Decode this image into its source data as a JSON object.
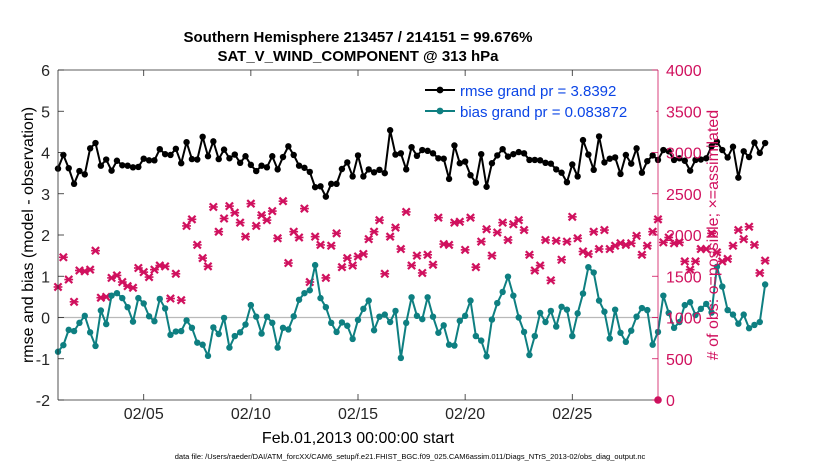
{
  "chart_data": {
    "type": "line",
    "title": "Southern Hemisphere 213457 / 214151 = 99.676%",
    "subtitle": "SAT_V_WIND_COMPONENT @ 313 hPa",
    "xlabel": "Feb.01,2013 00:00:00 start",
    "ylabel": "rmse and bias (model - observation)",
    "y2label": "# of obs: o=possible; ×=assimilated",
    "footer": "data file: /Users/raeder/DAI/ATM_forcXX/CAM6_setup/f.e21.FHIST_BGC.f09_025.CAM6assim.011/Diags_NTrS_2013-02/obs_diag_output.nc",
    "x_ticks": [
      "02/05",
      "02/10",
      "02/15",
      "02/20",
      "02/25"
    ],
    "x_tick_days": [
      5,
      10,
      15,
      20,
      25
    ],
    "xlim_days": [
      1,
      29
    ],
    "ylim": [
      -2,
      6
    ],
    "y_ticks": [
      "-2",
      "-1",
      "0",
      "1",
      "2",
      "3",
      "4",
      "5",
      "6"
    ],
    "y2lim": [
      0,
      4000
    ],
    "y2_ticks": [
      "0",
      "500",
      "1000",
      "1500",
      "2000",
      "2500",
      "3000",
      "3500",
      "4000"
    ],
    "legend_position": "top-right",
    "grid": false,
    "colors": {
      "rmse": "#000000",
      "bias": "#0e7f81",
      "obs": "#d0115e",
      "zero_line": "#b9b9b9"
    },
    "series": [
      {
        "name": "rmse grand pr = 3.8392",
        "axis": "left",
        "color": "#000000",
        "marker": "circle",
        "x_start_day": 1.0,
        "x_step_days": 0.25,
        "values": [
          3.61,
          3.94,
          3.62,
          3.24,
          3.55,
          3.47,
          4.1,
          4.23,
          3.68,
          3.83,
          3.56,
          3.8,
          3.69,
          3.68,
          3.64,
          3.65,
          3.85,
          3.81,
          3.81,
          4.08,
          3.96,
          3.94,
          4.09,
          3.74,
          4.25,
          3.84,
          3.83,
          4.38,
          3.91,
          4.27,
          3.84,
          4.07,
          3.86,
          3.95,
          3.75,
          3.91,
          3.7,
          3.55,
          3.68,
          3.64,
          3.91,
          3.59,
          3.89,
          4.15,
          3.94,
          3.68,
          3.63,
          3.53,
          3.16,
          3.18,
          2.93,
          3.24,
          3.24,
          3.6,
          3.76,
          3.42,
          3.93,
          3.42,
          3.59,
          3.52,
          3.58,
          3.5,
          4.54,
          3.95,
          3.98,
          3.59,
          4.13,
          3.92,
          4.06,
          4.04,
          3.98,
          3.86,
          3.85,
          3.36,
          4.17,
          3.74,
          3.78,
          3.45,
          3.27,
          3.96,
          3.17,
          3.74,
          3.93,
          4.08,
          3.9,
          3.96,
          4.01,
          3.98,
          3.82,
          3.82,
          3.81,
          3.75,
          3.73,
          3.59,
          3.51,
          3.28,
          3.71,
          3.42,
          4.3,
          3.95,
          3.58,
          4.39,
          3.76,
          3.85,
          3.88,
          3.48,
          3.94,
          3.73,
          4.1,
          3.51,
          3.79,
          3.93,
          3.82,
          4.06,
          4.03,
          3.82,
          3.86,
          3.8,
          3.56,
          3.82,
          3.83,
          3.86,
          4.15,
          4.26,
          4.06,
          3.88,
          4.14,
          3.39,
          4.03,
          3.89,
          4.24,
          3.99,
          4.23
        ]
      },
      {
        "name": "bias grand pr = 0.083872",
        "axis": "left",
        "color": "#0e7f81",
        "marker": "circle",
        "x_start_day": 1.0,
        "x_step_days": 0.25,
        "values": [
          -0.83,
          -0.67,
          -0.3,
          -0.33,
          -0.13,
          0.04,
          -0.36,
          -0.69,
          0.17,
          -0.16,
          0.53,
          0.59,
          0.47,
          0.25,
          -0.1,
          0.47,
          0.34,
          0.03,
          -0.09,
          0.45,
          0.22,
          -0.42,
          -0.34,
          -0.33,
          -0.07,
          -0.25,
          -0.61,
          -0.66,
          -0.93,
          -0.24,
          -0.4,
          -0.01,
          -0.73,
          -0.45,
          -0.36,
          -0.17,
          0.3,
          0.02,
          -0.39,
          0.02,
          -0.13,
          -0.73,
          -0.25,
          -0.29,
          0.03,
          0.43,
          0.59,
          0.66,
          1.27,
          0.47,
          0.25,
          -0.13,
          -0.35,
          -0.12,
          -0.2,
          -0.52,
          -0.06,
          0.21,
          0.41,
          -0.31,
          0.02,
          0.07,
          -0.11,
          0.16,
          -0.98,
          -0.13,
          0.49,
          0.04,
          -0.04,
          0.49,
          0.02,
          -0.37,
          -0.19,
          -0.66,
          -0.68,
          -0.08,
          0.04,
          0.41,
          -0.45,
          -0.56,
          -0.94,
          -0.05,
          0.35,
          0.62,
          0.99,
          0.53,
          0.0,
          -0.35,
          -0.91,
          -0.45,
          0.11,
          -0.11,
          0.16,
          -0.22,
          0.26,
          0.19,
          -0.45,
          0.1,
          0.58,
          1.22,
          1.09,
          0.41,
          0.14,
          -0.51,
          0.19,
          -0.37,
          -0.59,
          -0.32,
          0.02,
          0.23,
          0.18,
          -0.66,
          -0.35,
          0.53,
          0.11,
          -0.25,
          -0.11,
          0.3,
          0.37,
          0.06,
          0.21,
          0.33,
          0.12,
          1.23,
          0.75,
          0.18,
          0.07,
          -0.15,
          0.07,
          -0.26,
          -0.18,
          -0.11,
          0.8
        ]
      },
      {
        "name": "# of obs assimilated",
        "axis": "right",
        "color": "#d0115e",
        "marker": "x",
        "x_start_day": 1.0,
        "x_step_days": 0.25,
        "values": [
          1370,
          1730,
          1460,
          1190,
          1570,
          1560,
          1580,
          1810,
          1240,
          1250,
          1480,
          1510,
          1430,
          1380,
          1360,
          1600,
          1550,
          1490,
          1580,
          1630,
          1620,
          1230,
          1530,
          1210,
          2110,
          2190,
          1880,
          1720,
          1620,
          2340,
          2040,
          2200,
          2350,
          2270,
          2150,
          1980,
          2380,
          2110,
          2240,
          2180,
          2290,
          1960,
          2410,
          1660,
          2040,
          1970,
          2320,
          1430,
          1980,
          1880,
          1480,
          1870,
          2020,
          1610,
          1720,
          1630,
          1740,
          1770,
          1950,
          2040,
          2180,
          1530,
          1980,
          2090,
          1830,
          2280,
          1630,
          1750,
          1540,
          1760,
          1640,
          2210,
          1890,
          1880,
          2150,
          2160,
          1820,
          2210,
          1610,
          1920,
          2070,
          1750,
          2030,
          2150,
          1940,
          2130,
          2180,
          2060,
          1760,
          1570,
          1630,
          1940,
          1450,
          1930,
          1700,
          1920,
          2220,
          1960,
          1800,
          1770,
          2040,
          1830,
          2060,
          1830,
          1870,
          1900,
          1880,
          1900,
          1990,
          1760,
          1870,
          2040,
          2190,
          1910,
          1970,
          1900,
          1910,
          1680,
          1580,
          1680,
          1830,
          1830,
          2020,
          1790,
          1680,
          1710,
          1870,
          2060,
          1950,
          2100,
          1880,
          1540,
          1690
        ]
      }
    ]
  }
}
